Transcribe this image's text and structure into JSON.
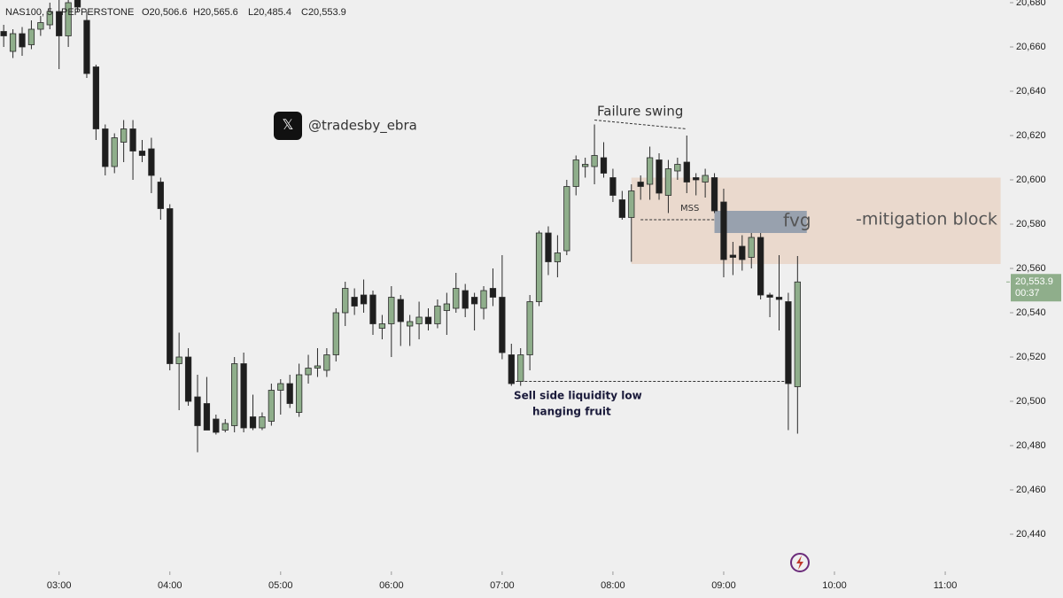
{
  "chart_data": {
    "type": "candlestick",
    "symbol": "NAS100, 5 · PEPPERSTONE",
    "header_labels": [
      "O20,506.6",
      "H20,565.6",
      "L20,485.4",
      "C20,553.9"
    ],
    "x": [
      "02:30",
      "02:35",
      "02:40",
      "02:45",
      "02:50",
      "02:55",
      "03:00",
      "03:05",
      "03:10",
      "03:15",
      "03:20",
      "03:25",
      "03:30",
      "03:35",
      "03:40",
      "03:45",
      "03:50",
      "03:55",
      "04:00",
      "04:05",
      "04:10",
      "04:15",
      "04:20",
      "04:25",
      "04:30",
      "04:35",
      "04:40",
      "04:45",
      "04:50",
      "04:55",
      "05:00",
      "05:05",
      "05:10",
      "05:15",
      "05:20",
      "05:25",
      "05:30",
      "05:35",
      "05:40",
      "05:45",
      "05:50",
      "05:55",
      "06:00",
      "06:05",
      "06:10",
      "06:15",
      "06:20",
      "06:25",
      "06:30",
      "06:35",
      "06:40",
      "06:45",
      "06:50",
      "06:55",
      "07:00",
      "07:05",
      "07:10",
      "07:15",
      "07:20",
      "07:25",
      "07:30",
      "07:35",
      "07:40",
      "07:45",
      "07:50",
      "07:55",
      "08:00",
      "08:05",
      "08:10",
      "08:15",
      "08:20",
      "08:25",
      "08:30",
      "08:35",
      "08:40",
      "08:45",
      "08:50",
      "08:55",
      "09:00",
      "09:05",
      "09:10",
      "09:15",
      "09:20",
      "09:25",
      "09:30",
      "09:35",
      "09:40"
    ],
    "open": [
      20667,
      20658,
      20666,
      20661,
      20668,
      20670,
      20676,
      20665,
      20682,
      20672,
      20651,
      20623,
      20606,
      20617,
      20623,
      20613,
      20614,
      20599,
      20587,
      20517,
      20520,
      20502,
      20499,
      20492,
      20487,
      20489,
      20517,
      20493,
      20488,
      20491,
      20505,
      20508,
      20495,
      20512,
      20515,
      20514,
      20521,
      20540,
      20547,
      20548,
      20548,
      20533,
      20535,
      20546,
      20534,
      20535,
      20538,
      20535,
      20541,
      20542,
      20550,
      20547,
      20542,
      20551,
      20547,
      20521,
      20509,
      20521,
      20545,
      20576,
      20563,
      20568,
      20597,
      20606,
      20606,
      20610,
      20601,
      20591,
      20583,
      20599,
      20598,
      20609,
      20593,
      20604,
      20608,
      20601,
      20599,
      20601,
      20590,
      20566,
      20570,
      20565,
      20574,
      20548,
      20547,
      20545,
      20506.6
    ],
    "high": [
      20670,
      20668,
      20669,
      20672,
      20674,
      20680,
      20682,
      20684,
      20686,
      20676,
      20652,
      20625,
      20621,
      20627,
      20627,
      20618,
      20619,
      20601,
      20589,
      20531,
      20524,
      20512,
      20511,
      20494,
      20492,
      20520,
      20522,
      20503,
      20495,
      20508,
      20510,
      20512,
      20517,
      20521,
      20524,
      20524,
      20542,
      20554,
      20551,
      20555,
      20550,
      20539,
      20552,
      20548,
      20539,
      20545,
      20542,
      20546,
      20549,
      20558,
      20553,
      20549,
      20552,
      20560,
      20566,
      20526,
      20524,
      20548,
      20577,
      20579,
      20575,
      20600,
      20611,
      20610,
      20625,
      20617,
      20605,
      20595,
      20598,
      20602,
      20615,
      20612,
      20609,
      20610,
      20620,
      20603,
      20605,
      20603,
      20596,
      20572,
      20575,
      20576,
      20576,
      20549,
      20566,
      20549,
      20565.6
    ],
    "low": [
      20660,
      20655,
      20656,
      20659,
      20665,
      20668,
      20650,
      20660,
      20676,
      20646,
      20618,
      20602,
      20603,
      20608,
      20600,
      20608,
      20594,
      20582,
      20514,
      20496,
      20498,
      20477,
      20488,
      20485,
      20486,
      20486,
      20486,
      20487,
      20487,
      20489,
      20494,
      20497,
      20493,
      20508,
      20511,
      20511,
      20518,
      20534,
      20539,
      20540,
      20530,
      20528,
      20520,
      20525,
      20525,
      20528,
      20532,
      20533,
      20530,
      20540,
      20538,
      20532,
      20537,
      20543,
      20519,
      20507,
      20507,
      20514,
      20543,
      20557,
      20556,
      20566,
      20593,
      20601,
      20598,
      20601,
      20590,
      20582,
      20563,
      20591,
      20591,
      20591,
      20585,
      20600,
      20594,
      20593,
      20592,
      20585,
      20556,
      20557,
      20559,
      20560,
      20546,
      20538,
      20532,
      20487,
      20485.4
    ],
    "close": [
      20665,
      20666,
      20660,
      20668,
      20671,
      20676,
      20665,
      20680,
      20678,
      20648,
      20623,
      20606,
      20619,
      20623,
      20613,
      20611,
      20602,
      20587,
      20517,
      20520,
      20500,
      20489,
      20487,
      20486,
      20490,
      20517,
      20488,
      20488,
      20493,
      20505,
      20508,
      20499,
      20512,
      20515,
      20516,
      20521,
      20540,
      20551,
      20543,
      20544,
      20535,
      20535,
      20547,
      20536,
      20536,
      20538,
      20535,
      20543,
      20544,
      20551,
      20542,
      20544,
      20550,
      20547,
      20522,
      20508,
      20521,
      20545,
      20576,
      20563,
      20567,
      20597,
      20609,
      20607,
      20611,
      20603,
      20593,
      20583,
      20595,
      20597,
      20610,
      20594,
      20605,
      20607,
      20599,
      20600,
      20602,
      20586,
      20564,
      20565,
      20564,
      20574,
      20548,
      20547,
      20546,
      20508,
      20553.9
    ],
    "up_color": "#8fae8b",
    "down_color": "#1e1e1e",
    "xlim": [
      "02:28",
      "11:35"
    ],
    "xticks": [
      "03:00",
      "04:00",
      "05:00",
      "06:00",
      "07:00",
      "08:00",
      "09:00",
      "10:00",
      "11:00"
    ],
    "ylim": [
      20423.2,
      20681.2
    ],
    "yticks": [
      {
        "value": 20440,
        "label": "20,440"
      },
      {
        "value": 20460,
        "label": "20,460"
      },
      {
        "value": 20480,
        "label": "20,480"
      },
      {
        "value": 20500,
        "label": "20,500"
      },
      {
        "value": 20520,
        "label": "20,520"
      },
      {
        "value": 20540,
        "label": "20,540"
      },
      {
        "value": 20560,
        "label": "20,560"
      },
      {
        "value": 20580,
        "label": "20,580"
      },
      {
        "value": 20600,
        "label": "20,600"
      },
      {
        "value": 20620,
        "label": "20,620"
      },
      {
        "value": 20640,
        "label": "20,640"
      },
      {
        "value": 20660,
        "label": "20,660"
      },
      {
        "value": 20680,
        "label": "20,680"
      }
    ],
    "last_price": {
      "value": 20553.9,
      "label": "20,553.9"
    },
    "countdown": "00:37",
    "watermark": "@tradesby_ebra",
    "zones": [
      {
        "label": "-mitigation block",
        "start": "08:10",
        "end": "11:30",
        "low": 20562,
        "high": 20601,
        "color": "#e9d5c7"
      },
      {
        "label": "fvg",
        "start": "08:55",
        "end": "09:45",
        "low": 20576,
        "high": 20586,
        "color": "#8f9aab"
      }
    ],
    "levels": [
      {
        "label": "Failure swing",
        "start": "07:50",
        "end": "08:40",
        "from": 20627,
        "to": 20623
      },
      {
        "label": "MSS",
        "start": "08:15",
        "end": "08:55",
        "from": 20582,
        "to": 20582
      },
      {
        "label": "Sell side liquidity low",
        "label2": "hanging fruit",
        "start": "07:05",
        "end": "09:35",
        "from": 20509,
        "to": 20509
      }
    ]
  }
}
